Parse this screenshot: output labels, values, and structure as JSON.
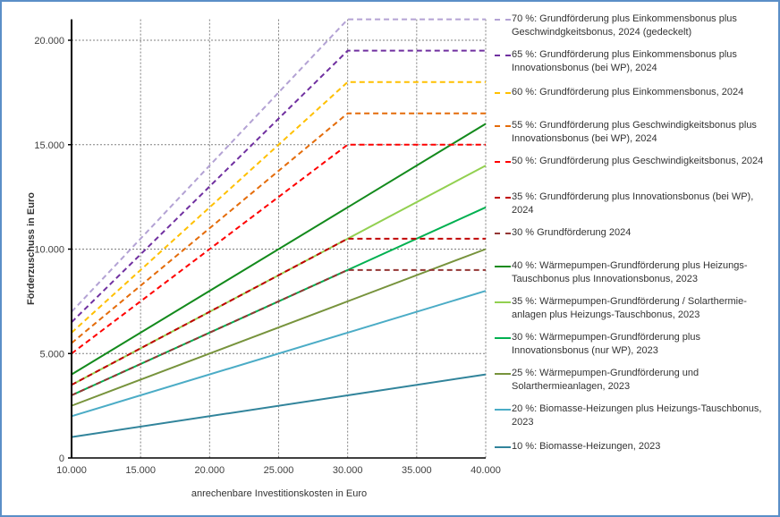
{
  "chart_data": {
    "type": "line",
    "xlabel": "anrechenbare Investitionskosten in Euro",
    "ylabel": "Förderzuschuss in Euro",
    "xlim": [
      10000,
      40000
    ],
    "ylim": [
      0,
      21000
    ],
    "x_ticks": [
      10000,
      15000,
      20000,
      25000,
      30000,
      35000,
      40000
    ],
    "x_tick_labels": [
      "10.000",
      "15.000",
      "20.000",
      "25.000",
      "30.000",
      "35.000",
      "40.000"
    ],
    "y_ticks": [
      0,
      5000,
      10000,
      15000,
      20000
    ],
    "y_tick_labels": [
      "0",
      "5.000",
      "10.000",
      "15.000",
      "20.000"
    ],
    "grid": "dotted",
    "legend_position": "right",
    "x": [
      10000,
      30000,
      40000
    ],
    "series": [
      {
        "name": "70 %: Grundförderung plus Einkommensbonus plus Geschwindgkeitsbonus, 2024 (gedeckelt)",
        "values": [
          7000,
          21000,
          21000
        ],
        "color": "#b3a2d4",
        "dashed": true
      },
      {
        "name": "65 %: Grundförderung plus Einkommensbonus plus Innovationsbonus (bei WP), 2024",
        "values": [
          6500,
          19500,
          19500
        ],
        "color": "#7030a0",
        "dashed": true
      },
      {
        "name": "60 %: Grundförderung plus Einkommensbonus, 2024",
        "values": [
          6000,
          18000,
          18000
        ],
        "color": "#ffc000",
        "dashed": true
      },
      {
        "name": "55 %: Grundförderung plus Geschwindigkeitsbonus plus Innovationsbonus (bei WP), 2024",
        "values": [
          5500,
          16500,
          16500
        ],
        "color": "#e46c0a",
        "dashed": true
      },
      {
        "name": "50 %: Grundförderung plus Geschwindigkeitsbonus, 2024",
        "values": [
          5000,
          15000,
          15000
        ],
        "color": "#ff0000",
        "dashed": true
      },
      {
        "name": "35 %: Grundförderung plus Innovationsbonus (bei WP), 2024",
        "values": [
          3500,
          10500,
          10500
        ],
        "color": "#c00000",
        "dashed": true
      },
      {
        "name": "30 % Grundförderung 2024",
        "values": [
          3000,
          9000,
          9000
        ],
        "color": "#943634",
        "dashed": true
      },
      {
        "name": "40 %: Wärmepumpen-Grundförderung plus Heizungs-Tauschbonus plus Innovationsbonus, 2023",
        "values": [
          4000,
          12000,
          16000
        ],
        "color": "#138a1c",
        "dashed": false
      },
      {
        "name": "35 %: Wärmepumpen-Grundförderung / Solarthermie-anlagen plus Heizungs-Tauschbonus, 2023",
        "values": [
          3500,
          10500,
          14000
        ],
        "color": "#92d050",
        "dashed": false
      },
      {
        "name": "30 %: Wärmepumpen-Grundförderung plus Innovationsbonus (nur WP), 2023",
        "values": [
          3000,
          9000,
          12000
        ],
        "color": "#00b050",
        "dashed": false
      },
      {
        "name": "25 %: Wärmepumpen-Grundförderung und Solarthermieanlagen, 2023",
        "values": [
          2500,
          7500,
          10000
        ],
        "color": "#77933c",
        "dashed": false
      },
      {
        "name": "20 %: Biomasse-Heizungen plus Heizungs-Tauschbonus, 2023",
        "values": [
          2000,
          6000,
          8000
        ],
        "color": "#4bacc6",
        "dashed": false
      },
      {
        "name": "10 %: Biomasse-Heizungen, 2023",
        "values": [
          1000,
          3000,
          4000
        ],
        "color": "#31849b",
        "dashed": false
      }
    ]
  }
}
